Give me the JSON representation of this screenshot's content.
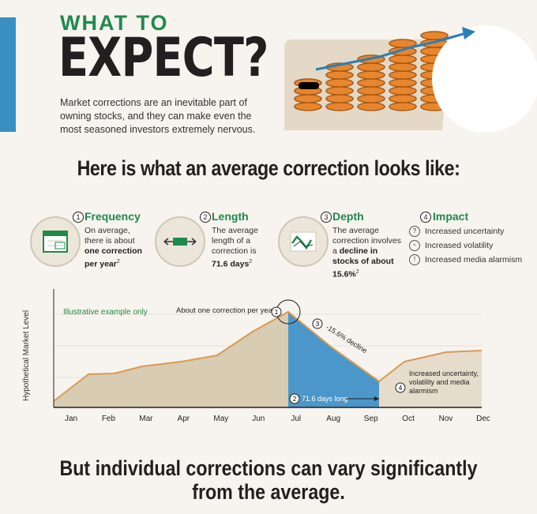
{
  "header": {
    "kicker": "WHAT TO",
    "title": "EXPECT?",
    "intro": "Market corrections are an inevitable part of owning stocks, and they can make even the most seasoned investors extremely nervous."
  },
  "subheading": "Here is what an average correction looks like:",
  "metrics": [
    {
      "num": "1",
      "title": "Frequency",
      "icon": "calendar-icon",
      "desc_pre": "On average, there is about ",
      "desc_bold": "one correction per year",
      "sup": "2",
      "desc_post": ""
    },
    {
      "num": "2",
      "title": "Length",
      "icon": "timeline-icon",
      "desc_pre": "The average length of a correction is ",
      "desc_bold": "71.6 days",
      "sup": "2",
      "desc_post": ""
    },
    {
      "num": "3",
      "title": "Depth",
      "icon": "declining-chart-icon",
      "desc_pre": "The average correction involves a ",
      "desc_bold": "decline in stocks of about 15.6%",
      "sup": "2",
      "desc_post": ""
    }
  ],
  "impact": {
    "num": "4",
    "title": "Impact",
    "items": [
      {
        "label": "Increased uncertainty",
        "icon": "question-icon"
      },
      {
        "label": "Increased volatility",
        "icon": "wave-icon"
      },
      {
        "label": "Increased media alarmism",
        "icon": "warning-icon"
      }
    ]
  },
  "chart_data": {
    "type": "area",
    "ylabel": "Hypothetical Market Level",
    "note": "Illustrative example only",
    "categories": [
      "Jan",
      "Feb",
      "Mar",
      "Apr",
      "May",
      "Jun",
      "Jul",
      "Aug",
      "Sep",
      "Oct",
      "Nov",
      "Dec"
    ],
    "annotations": [
      {
        "num": "1",
        "text": "About one correction per year"
      },
      {
        "num": "2",
        "text": "71.6 days long"
      },
      {
        "num": "3",
        "text": "-15.6% decline"
      },
      {
        "num": "4",
        "text": "Increased uncertainty, volatility and media alarmism"
      }
    ],
    "colors": {
      "pre": "#d8ccb3",
      "correction": "#4b97c9",
      "post": "#e6dccb",
      "line": "#d89a55"
    }
  },
  "footer": {
    "line1": "But individual corrections can vary significantly",
    "line2": "from the average."
  }
}
